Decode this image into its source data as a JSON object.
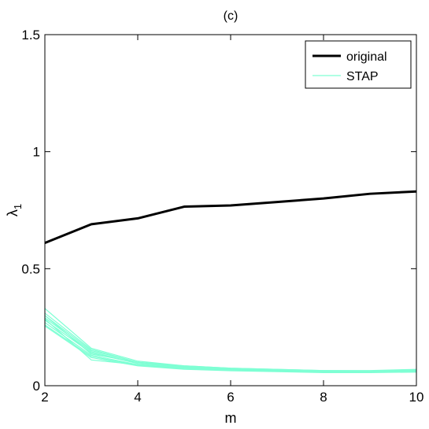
{
  "chart_data": {
    "type": "line",
    "title": "(c)",
    "xlabel": "m",
    "ylabel": "λ",
    "ylabel_subscript": "1",
    "xlim": [
      2,
      10
    ],
    "ylim": [
      0,
      1.5
    ],
    "xticks": [
      2,
      4,
      6,
      8,
      10
    ],
    "xtick_labels": [
      "2",
      "4",
      "6",
      "8",
      "10"
    ],
    "yticks": [
      0,
      0.5,
      1,
      1.5
    ],
    "ytick_labels": [
      "0",
      "0.5",
      "1",
      "1.5"
    ],
    "grid": false,
    "legend_position": "top-right",
    "x": [
      2,
      3,
      4,
      5,
      6,
      7,
      8,
      9,
      10
    ],
    "series": [
      {
        "name": "original",
        "color": "#000000",
        "values": [
          0.61,
          0.69,
          0.715,
          0.765,
          0.77,
          0.785,
          0.8,
          0.82,
          0.83
        ]
      },
      {
        "name": "STAP",
        "color": "#7fffd4",
        "replicates": [
          [
            0.33,
            0.16,
            0.105,
            0.085,
            0.075,
            0.07,
            0.065,
            0.065,
            0.07
          ],
          [
            0.31,
            0.155,
            0.1,
            0.085,
            0.075,
            0.07,
            0.065,
            0.063,
            0.068
          ],
          [
            0.3,
            0.15,
            0.1,
            0.08,
            0.072,
            0.068,
            0.063,
            0.062,
            0.066
          ],
          [
            0.29,
            0.145,
            0.095,
            0.08,
            0.07,
            0.066,
            0.062,
            0.06,
            0.064
          ],
          [
            0.28,
            0.14,
            0.095,
            0.078,
            0.07,
            0.065,
            0.06,
            0.06,
            0.063
          ],
          [
            0.27,
            0.13,
            0.09,
            0.075,
            0.068,
            0.063,
            0.058,
            0.058,
            0.062
          ],
          [
            0.26,
            0.125,
            0.088,
            0.072,
            0.066,
            0.062,
            0.057,
            0.057,
            0.06
          ],
          [
            0.255,
            0.12,
            0.085,
            0.07,
            0.064,
            0.06,
            0.056,
            0.056,
            0.058
          ],
          [
            0.285,
            0.11,
            0.09,
            0.076,
            0.068,
            0.064,
            0.06,
            0.058,
            0.061
          ],
          [
            0.3,
            0.135,
            0.1,
            0.082,
            0.073,
            0.068,
            0.062,
            0.061,
            0.065
          ]
        ]
      }
    ]
  }
}
